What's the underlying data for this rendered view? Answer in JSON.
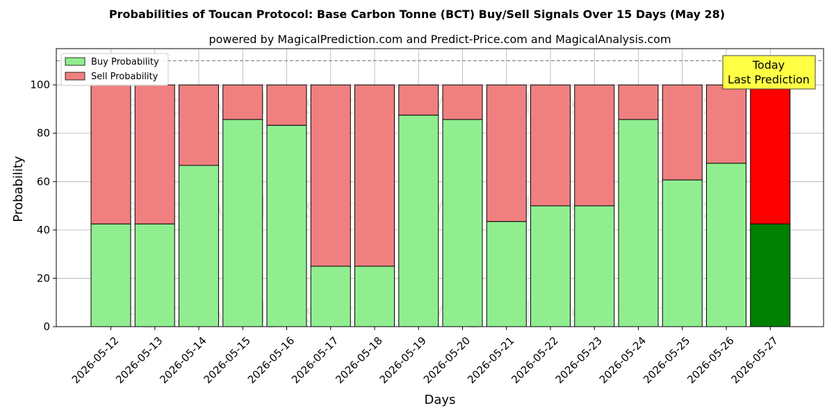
{
  "chart_data": {
    "type": "bar",
    "stacked": true,
    "title": "Probabilities of Toucan Protocol: Base Carbon Tonne (BCT) Buy/Sell Signals Over 15 Days (May 28)",
    "subtitle": "powered by MagicalPrediction.com and Predict-Price.com and MagicalAnalysis.com",
    "xlabel": "Days",
    "ylabel": "Probability",
    "ylim": [
      0,
      115
    ],
    "yticks": [
      0,
      20,
      40,
      60,
      80,
      100
    ],
    "grid": true,
    "reference_line": 110,
    "legend_position": "top-left",
    "categories": [
      "2026-05-12",
      "2026-05-13",
      "2026-05-14",
      "2026-05-15",
      "2026-05-16",
      "2026-05-17",
      "2026-05-18",
      "2026-05-19",
      "2026-05-20",
      "2026-05-21",
      "2026-05-22",
      "2026-05-23",
      "2026-05-24",
      "2026-05-25",
      "2026-05-26",
      "2026-05-27"
    ],
    "series": [
      {
        "name": "Buy Probability",
        "color": "#90ee90",
        "last_color": "#008000",
        "values": [
          42.5,
          42.5,
          66.7,
          85.7,
          83.3,
          25.0,
          25.0,
          87.5,
          85.7,
          43.5,
          50.0,
          50.0,
          85.7,
          60.7,
          67.6,
          42.5
        ]
      },
      {
        "name": "Sell Probability",
        "color": "#f08080",
        "last_color": "#ff0000",
        "values": [
          57.5,
          57.5,
          33.3,
          14.3,
          16.7,
          75.0,
          75.0,
          12.5,
          14.3,
          56.5,
          50.0,
          50.0,
          14.3,
          39.3,
          32.4,
          57.5
        ]
      }
    ],
    "annotation": {
      "lines": [
        "Today",
        "Last Prediction"
      ],
      "background": "#ffff44"
    },
    "watermarks": [
      "MagicalAnalysis.com",
      "MagicalPrediction.com"
    ]
  }
}
